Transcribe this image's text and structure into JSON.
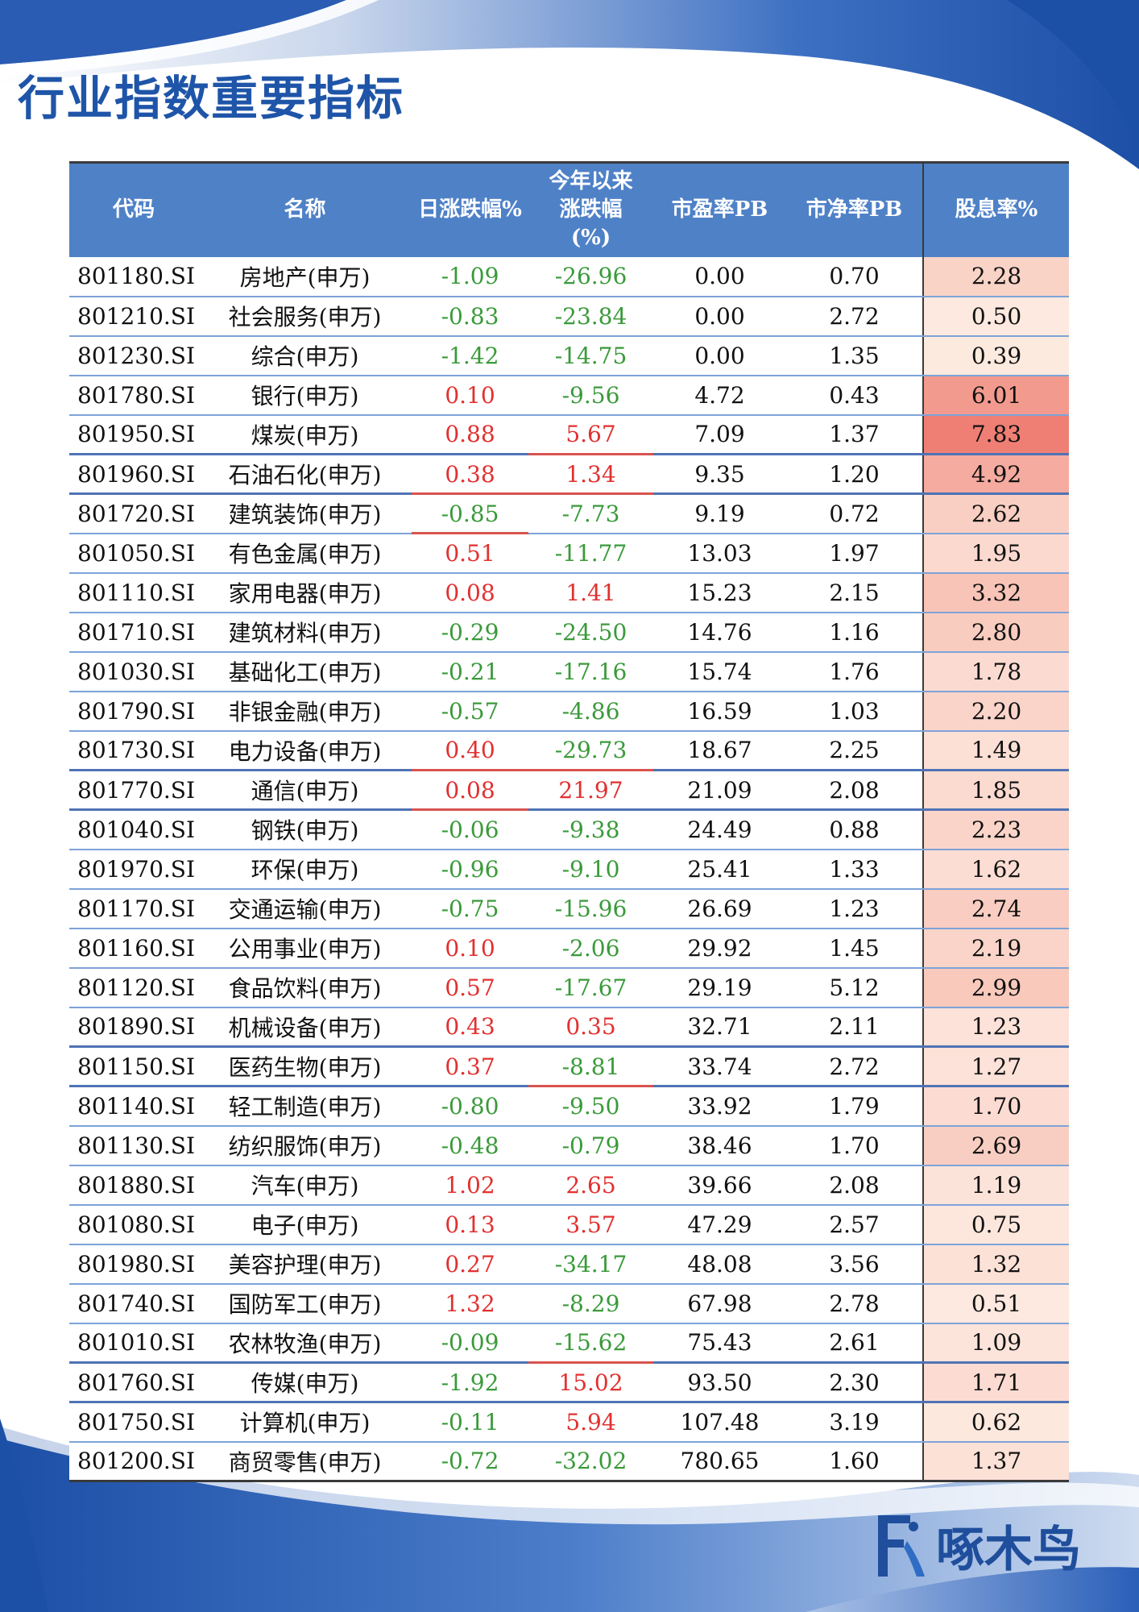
{
  "page_title": "行业指数重要指标",
  "logo": {
    "text": "啄木鸟",
    "icon": "woodpecker-logo-icon"
  },
  "table": {
    "headers": {
      "code": "代码",
      "name": "名称",
      "daily": "日涨跌幅%",
      "ytd_line1": "今年以来",
      "ytd_line2": "涨跌幅",
      "ytd_line3": "(%)",
      "pe": "市盈率PB",
      "pb": "市净率PB",
      "yield": "股息率%"
    },
    "rows": [
      {
        "code": "801180.SI",
        "name": "房地产(申万)",
        "daily": "-1.09",
        "ytd": "-26.96",
        "pe": "0.00",
        "pb": "0.70",
        "yield": "2.28",
        "yield_color": "#fad3c7"
      },
      {
        "code": "801210.SI",
        "name": "社会服务(申万)",
        "daily": "-0.83",
        "ytd": "-23.84",
        "pe": "0.00",
        "pb": "2.72",
        "yield": "0.50",
        "yield_color": "#fde9df"
      },
      {
        "code": "801230.SI",
        "name": "综合(申万)",
        "daily": "-1.42",
        "ytd": "-14.75",
        "pe": "0.00",
        "pb": "1.35",
        "yield": "0.39",
        "yield_color": "#fdeadf"
      },
      {
        "code": "801780.SI",
        "name": "银行(申万)",
        "daily": "0.10",
        "ytd": "-9.56",
        "pe": "4.72",
        "pb": "0.43",
        "yield": "6.01",
        "yield_color": "#f39a8e"
      },
      {
        "code": "801950.SI",
        "name": "煤炭(申万)",
        "daily": "0.88",
        "ytd": "5.67",
        "pe": "7.09",
        "pb": "1.37",
        "yield": "7.83",
        "yield_color": "#ef7f74"
      },
      {
        "code": "801960.SI",
        "name": "石油石化(申万)",
        "daily": "0.38",
        "ytd": "1.34",
        "pe": "9.35",
        "pb": "1.20",
        "yield": "4.92",
        "yield_color": "#f5ab9f"
      },
      {
        "code": "801720.SI",
        "name": "建筑装饰(申万)",
        "daily": "-0.85",
        "ytd": "-7.73",
        "pe": "9.19",
        "pb": "0.72",
        "yield": "2.62",
        "yield_color": "#f9cfc3"
      },
      {
        "code": "801050.SI",
        "name": "有色金属(申万)",
        "daily": "0.51",
        "ytd": "-11.77",
        "pe": "13.03",
        "pb": "1.97",
        "yield": "1.95",
        "yield_color": "#fbd9cf"
      },
      {
        "code": "801110.SI",
        "name": "家用电器(申万)",
        "daily": "0.08",
        "ytd": "1.41",
        "pe": "15.23",
        "pb": "2.15",
        "yield": "3.32",
        "yield_color": "#f8c4b7"
      },
      {
        "code": "801710.SI",
        "name": "建筑材料(申万)",
        "daily": "-0.29",
        "ytd": "-24.50",
        "pe": "14.76",
        "pb": "1.16",
        "yield": "2.80",
        "yield_color": "#f9ccc0"
      },
      {
        "code": "801030.SI",
        "name": "基础化工(申万)",
        "daily": "-0.21",
        "ytd": "-17.16",
        "pe": "15.74",
        "pb": "1.76",
        "yield": "1.78",
        "yield_color": "#fbdbd1"
      },
      {
        "code": "801790.SI",
        "name": "非银金融(申万)",
        "daily": "-0.57",
        "ytd": "-4.86",
        "pe": "16.59",
        "pb": "1.03",
        "yield": "2.20",
        "yield_color": "#fad4c9"
      },
      {
        "code": "801730.SI",
        "name": "电力设备(申万)",
        "daily": "0.40",
        "ytd": "-29.73",
        "pe": "18.67",
        "pb": "2.25",
        "yield": "1.49",
        "yield_color": "#fcdfd5"
      },
      {
        "code": "801770.SI",
        "name": "通信(申万)",
        "daily": "0.08",
        "ytd": "21.97",
        "pe": "21.09",
        "pb": "2.08",
        "yield": "1.85",
        "yield_color": "#fbdad0"
      },
      {
        "code": "801040.SI",
        "name": "钢铁(申万)",
        "daily": "-0.06",
        "ytd": "-9.38",
        "pe": "24.49",
        "pb": "0.88",
        "yield": "2.23",
        "yield_color": "#fad4c8"
      },
      {
        "code": "801970.SI",
        "name": "环保(申万)",
        "daily": "-0.96",
        "ytd": "-9.10",
        "pe": "25.41",
        "pb": "1.33",
        "yield": "1.62",
        "yield_color": "#fcddd3"
      },
      {
        "code": "801170.SI",
        "name": "交通运输(申万)",
        "daily": "-0.75",
        "ytd": "-15.96",
        "pe": "26.69",
        "pb": "1.23",
        "yield": "2.74",
        "yield_color": "#f9cdc1"
      },
      {
        "code": "801160.SI",
        "name": "公用事业(申万)",
        "daily": "0.10",
        "ytd": "-2.06",
        "pe": "29.92",
        "pb": "1.45",
        "yield": "2.19",
        "yield_color": "#fad4c9"
      },
      {
        "code": "801120.SI",
        "name": "食品饮料(申万)",
        "daily": "0.57",
        "ytd": "-17.67",
        "pe": "29.19",
        "pb": "5.12",
        "yield": "2.99",
        "yield_color": "#f9c9bc"
      },
      {
        "code": "801890.SI",
        "name": "机械设备(申万)",
        "daily": "0.43",
        "ytd": "0.35",
        "pe": "32.71",
        "pb": "2.11",
        "yield": "1.23",
        "yield_color": "#fce2d8"
      },
      {
        "code": "801150.SI",
        "name": "医药生物(申万)",
        "daily": "0.37",
        "ytd": "-8.81",
        "pe": "33.74",
        "pb": "2.72",
        "yield": "1.27",
        "yield_color": "#fce2d8"
      },
      {
        "code": "801140.SI",
        "name": "轻工制造(申万)",
        "daily": "-0.80",
        "ytd": "-9.50",
        "pe": "33.92",
        "pb": "1.79",
        "yield": "1.70",
        "yield_color": "#fcdcd2"
      },
      {
        "code": "801130.SI",
        "name": "纺织服饰(申万)",
        "daily": "-0.48",
        "ytd": "-0.79",
        "pe": "38.46",
        "pb": "1.70",
        "yield": "2.69",
        "yield_color": "#f9cec2"
      },
      {
        "code": "801880.SI",
        "name": "汽车(申万)",
        "daily": "1.02",
        "ytd": "2.65",
        "pe": "39.66",
        "pb": "2.08",
        "yield": "1.19",
        "yield_color": "#fce3d9"
      },
      {
        "code": "801080.SI",
        "name": "电子(申万)",
        "daily": "0.13",
        "ytd": "3.57",
        "pe": "47.29",
        "pb": "2.57",
        "yield": "0.75",
        "yield_color": "#fde7dd"
      },
      {
        "code": "801980.SI",
        "name": "美容护理(申万)",
        "daily": "0.27",
        "ytd": "-34.17",
        "pe": "48.08",
        "pb": "3.56",
        "yield": "1.32",
        "yield_color": "#fce1d7"
      },
      {
        "code": "801740.SI",
        "name": "国防军工(申万)",
        "daily": "1.32",
        "ytd": "-8.29",
        "pe": "67.98",
        "pb": "2.78",
        "yield": "0.51",
        "yield_color": "#fde9df"
      },
      {
        "code": "801010.SI",
        "name": "农林牧渔(申万)",
        "daily": "-0.09",
        "ytd": "-15.62",
        "pe": "75.43",
        "pb": "2.61",
        "yield": "1.09",
        "yield_color": "#fce4da"
      },
      {
        "code": "801760.SI",
        "name": "传媒(申万)",
        "daily": "-1.92",
        "ytd": "15.02",
        "pe": "93.50",
        "pb": "2.30",
        "yield": "1.71",
        "yield_color": "#fcdcd2"
      },
      {
        "code": "801750.SI",
        "name": "计算机(申万)",
        "daily": "-0.11",
        "ytd": "5.94",
        "pe": "107.48",
        "pb": "3.19",
        "yield": "0.62",
        "yield_color": "#fde8de"
      },
      {
        "code": "801200.SI",
        "name": "商贸零售(申万)",
        "daily": "-0.72",
        "ytd": "-32.02",
        "pe": "780.65",
        "pb": "1.60",
        "yield": "1.37",
        "yield_color": "#fce1d7"
      }
    ]
  }
}
